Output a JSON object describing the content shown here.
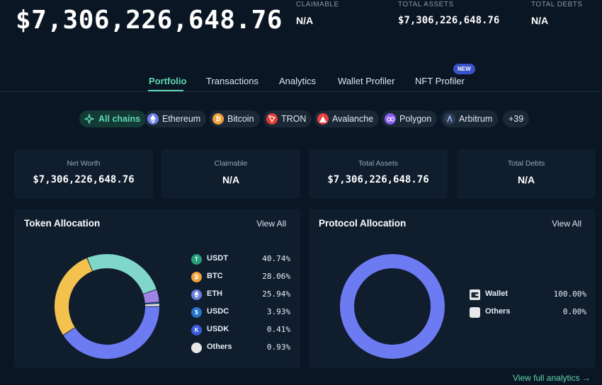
{
  "header": {
    "balance": "$7,306,226,648.76",
    "stats": [
      {
        "label": "CLAIMABLE",
        "value": "N/A"
      },
      {
        "label": "TOTAL ASSETS",
        "value": "$7,306,226,648.76"
      },
      {
        "label": "TOTAL DEBTS",
        "value": "N/A"
      }
    ]
  },
  "tabs": [
    {
      "label": "Portfolio",
      "active": true
    },
    {
      "label": "Transactions"
    },
    {
      "label": "Analytics"
    },
    {
      "label": "Wallet Profiler"
    },
    {
      "label": "NFT Profiler",
      "badge": "NEW"
    }
  ],
  "chains": [
    {
      "label": "All chains",
      "icon": "sparkle-icon",
      "active": true
    },
    {
      "label": "Ethereum",
      "icon": "ethereum-icon",
      "color": "#6b7fe0"
    },
    {
      "label": "Bitcoin",
      "icon": "bitcoin-icon",
      "color": "#f0a23a"
    },
    {
      "label": "TRON",
      "icon": "tron-icon",
      "color": "#e23c35"
    },
    {
      "label": "Avalanche",
      "icon": "avalanche-icon",
      "color": "#e84142"
    },
    {
      "label": "Polygon",
      "icon": "polygon-icon",
      "color": "#8a5cf0"
    },
    {
      "label": "Arbitrum",
      "icon": "arbitrum-icon",
      "color": "#2d3d55"
    },
    {
      "label": "+39"
    }
  ],
  "summary": [
    {
      "label": "Net Worth",
      "value": "$7,306,226,648.76"
    },
    {
      "label": "Claimable",
      "value": "N/A"
    },
    {
      "label": "Total Assets",
      "value": "$7,306,226,648.76"
    },
    {
      "label": "Total Debts",
      "value": "N/A"
    }
  ],
  "token_allocation": {
    "title": "Token Allocation",
    "view_all": "View All",
    "items": [
      {
        "name": "USDT",
        "pct": "40.74%",
        "value": 40.74,
        "color": "#6c7bf2",
        "icon": "tether-icon",
        "icon_color": "#26a17b"
      },
      {
        "name": "BTC",
        "pct": "28.06%",
        "value": 28.06,
        "color": "#f2c14e",
        "icon": "bitcoin-icon",
        "icon_color": "#f0a23a"
      },
      {
        "name": "ETH",
        "pct": "25.94%",
        "value": 25.94,
        "color": "#7fd6c9",
        "icon": "ethereum-icon",
        "icon_color": "#6b7fe0"
      },
      {
        "name": "USDC",
        "pct": "3.93%",
        "value": 3.93,
        "color": "#a183e6",
        "icon": "usdc-icon",
        "icon_color": "#2775ca"
      },
      {
        "name": "USDK",
        "pct": "0.41%",
        "value": 0.41,
        "color": "#3f7fe0",
        "icon": "usdk-icon",
        "icon_color": "#3a5bd9"
      },
      {
        "name": "Others",
        "pct": "0.93%",
        "value": 0.93,
        "color": "#e8e8e8",
        "icon": "others-icon",
        "icon_color": "#e8e8e8"
      }
    ]
  },
  "protocol_allocation": {
    "title": "Protocol Allocation",
    "view_all": "View All",
    "items": [
      {
        "name": "Wallet",
        "pct": "100.00%",
        "value": 100.0,
        "color": "#6c7bf2",
        "icon": "wallet-icon"
      },
      {
        "name": "Others",
        "pct": "0.00%",
        "value": 0.0,
        "color": "#e8e8e8",
        "icon": "others-icon"
      }
    ]
  },
  "footer": {
    "link": "View full analytics",
    "arrow": "→"
  }
}
